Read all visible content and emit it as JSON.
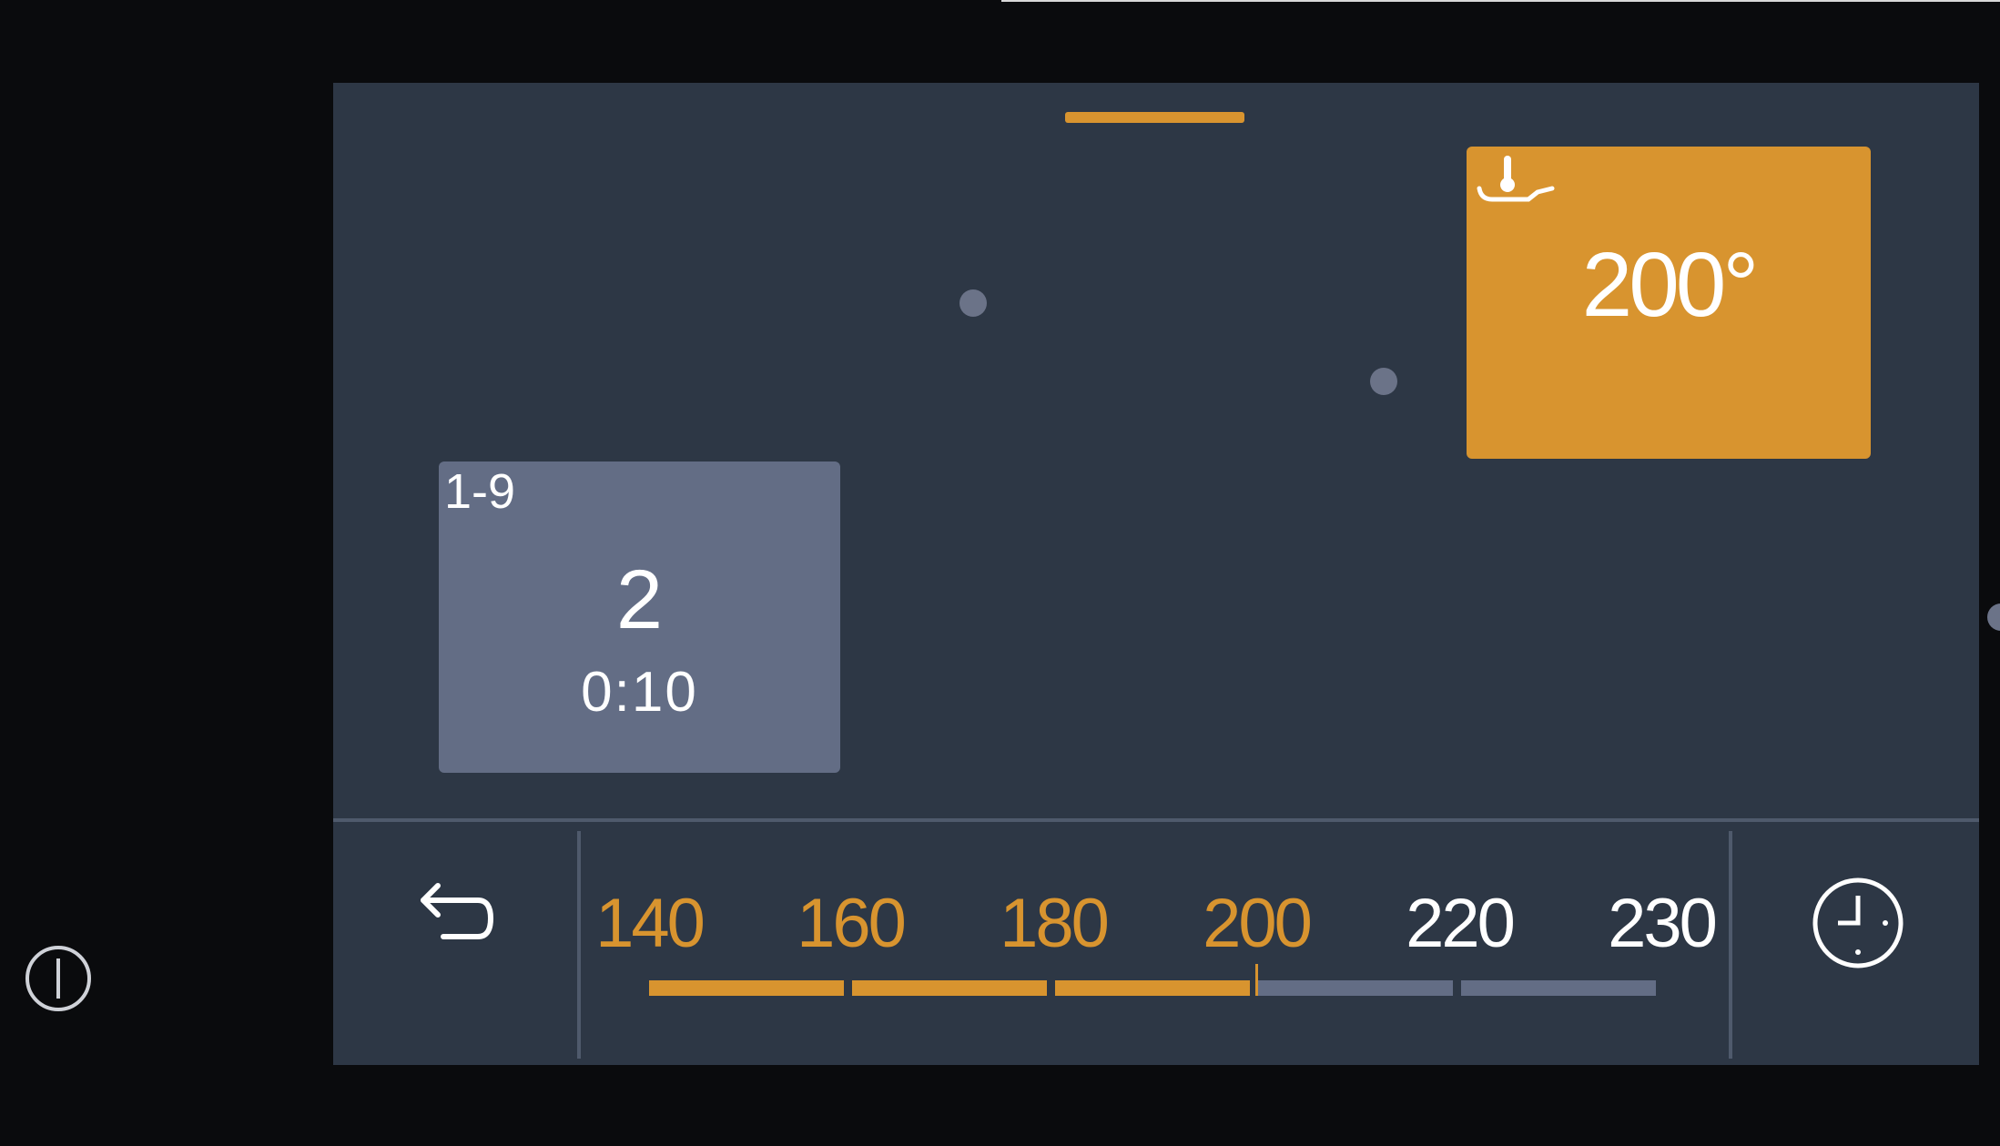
{
  "colors": {
    "accent": "#d8942f",
    "panel": "#2d3745",
    "card_inactive": "#636d85",
    "background": "#0a0b0d"
  },
  "temperature_card": {
    "icon": "thermometer-pan-icon",
    "value": "200°"
  },
  "level_card": {
    "range": "1-9",
    "value": "2",
    "time": "0:10"
  },
  "temperature_scale": {
    "labels": [
      "140",
      "160",
      "180",
      "200",
      "220",
      "230"
    ],
    "selected": "200",
    "selected_fraction": 0.6
  },
  "buttons": {
    "back": "back-arrow-icon",
    "timer": "clock-icon",
    "power": "power-icon"
  }
}
